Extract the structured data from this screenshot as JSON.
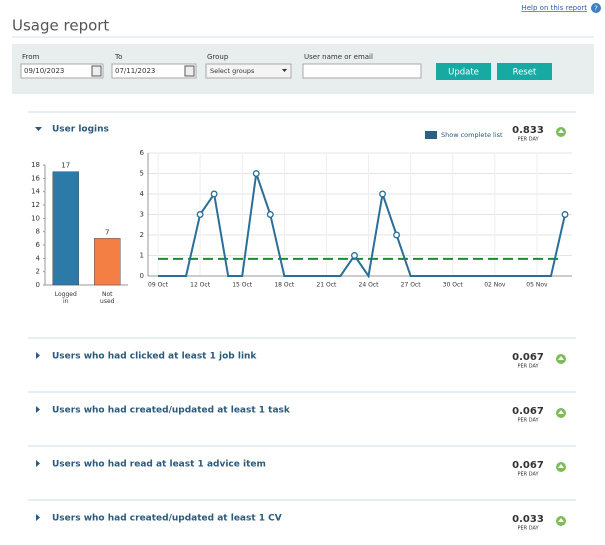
{
  "header": {
    "title": "Usage report",
    "help_link": "Help on this report"
  },
  "filters": {
    "from": {
      "label": "From",
      "value": "09/10/2023"
    },
    "to": {
      "label": "To",
      "value": "07/11/2023"
    },
    "group": {
      "label": "Group",
      "value": "Select groups"
    },
    "user": {
      "label": "User name or email"
    },
    "buttons": [
      "Update",
      "Reset"
    ]
  },
  "sections": [
    {
      "title": "User logins",
      "rate": "0.833",
      "rate_unit": "PER DAY",
      "link": "Show complete list"
    },
    {
      "title": "Users who had clicked at least 1 job link",
      "rate": "0.067",
      "rate_unit": "PER DAY"
    },
    {
      "title": "Users who had created/updated at least 1 task",
      "rate": "0.067",
      "rate_unit": "PER DAY"
    },
    {
      "title": "Users who had read at least 1 advice item",
      "rate": "0.067",
      "rate_unit": "PER DAY"
    },
    {
      "title": "Users who had created/updated at least 1 CV",
      "rate": "0.033",
      "rate_unit": "PER DAY"
    }
  ],
  "chart_data": [
    {
      "type": "bar",
      "categories": [
        "Logged in",
        "Not used"
      ],
      "values": [
        17,
        7
      ],
      "colors": [
        "#2c7aa8",
        "#f47f45"
      ],
      "ylim": [
        0,
        18
      ],
      "yticks": [
        0,
        2,
        4,
        6,
        8,
        10,
        12,
        14,
        16,
        18
      ]
    },
    {
      "type": "line",
      "categories": [
        "09 Oct",
        null,
        null,
        "12 Oct",
        null,
        null,
        "15 Oct",
        null,
        null,
        "18 Oct",
        null,
        null,
        "21 Oct",
        null,
        null,
        "24 Oct",
        null,
        null,
        "27 Oct",
        null,
        null,
        "30 Oct",
        null,
        null,
        "02 Nov",
        null,
        null,
        "05 Nov",
        null,
        null
      ],
      "series": [
        {
          "color": "#2b6f98",
          "values": [
            0,
            0,
            0,
            3,
            4,
            0,
            0,
            5,
            3,
            0,
            0,
            0,
            0,
            0,
            1,
            0,
            4,
            2,
            0,
            0,
            0,
            0,
            0,
            0,
            0,
            0,
            0,
            0,
            0,
            3
          ]
        }
      ],
      "reference_line": {
        "value": 0.833,
        "color": "#1e8c2e"
      },
      "ylim": [
        0,
        6
      ],
      "yticks": [
        0,
        1,
        2,
        3,
        4,
        5,
        6
      ],
      "grid": true
    }
  ]
}
